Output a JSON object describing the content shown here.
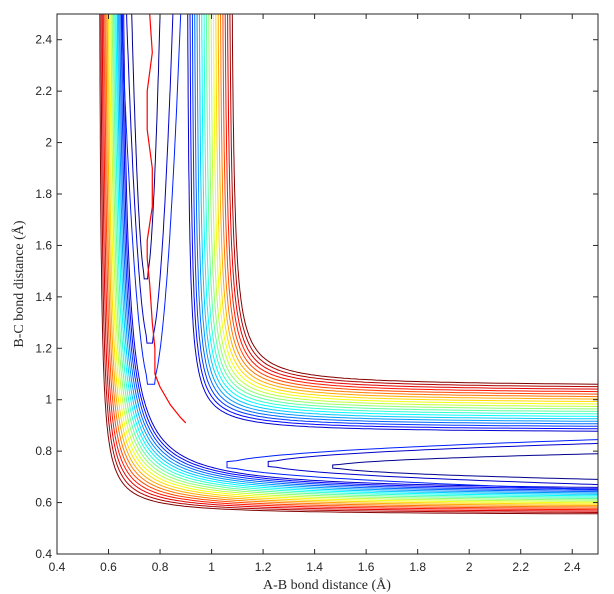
{
  "chart_data": {
    "type": "contour",
    "title": "",
    "xlabel": "A-B bond distance (Å)",
    "ylabel": "B-C bond distance (Å)",
    "xlim": [
      0.4,
      2.5
    ],
    "ylim": [
      0.4,
      2.5
    ],
    "xticks": [
      "0.4",
      "0.6",
      "0.8",
      "1",
      "1.2",
      "1.4",
      "1.6",
      "1.8",
      "2",
      "2.2",
      "2.4"
    ],
    "yticks": [
      "0.4",
      "0.6",
      "0.8",
      "1",
      "1.2",
      "1.4",
      "1.6",
      "1.8",
      "2",
      "2.2",
      "2.4"
    ],
    "grid": false,
    "colormap": "jet",
    "n_levels": 20,
    "inner_wall": {
      "asym_x": [
        0.64,
        0.56
      ],
      "asym_y": [
        0.64,
        0.55
      ],
      "curvature": [
        0.035,
        0.012
      ]
    },
    "outer_wall": {
      "asym_x": [
        0.9,
        1.07
      ],
      "asym_y": [
        0.87,
        1.05
      ],
      "curvature": [
        0.012,
        0.015
      ]
    },
    "entrance_valley_tongues": [
      {
        "x_left": 0.69,
        "x_right": 0.8,
        "tip_y": 1.47
      },
      {
        "x_left": 0.67,
        "x_right": 0.85,
        "tip_y": 1.22
      },
      {
        "x_left": 0.65,
        "x_right": 0.88,
        "tip_y": 1.06
      }
    ],
    "exit_valley_tongues": [
      {
        "y_low": 0.69,
        "y_high": 0.79,
        "tip_x": 1.47
      },
      {
        "y_low": 0.67,
        "y_high": 0.83,
        "tip_x": 1.22
      },
      {
        "y_low": 0.65,
        "y_high": 0.845,
        "tip_x": 1.06
      }
    ],
    "trajectory": {
      "color": "#ff0000",
      "x": [
        0.76,
        0.77,
        0.75,
        0.75,
        0.77,
        0.77,
        0.75,
        0.75,
        0.76,
        0.77,
        0.78,
        0.78,
        0.8,
        0.84,
        0.88,
        0.9,
        0.89
      ],
      "y": [
        2.5,
        2.35,
        2.2,
        2.05,
        1.9,
        1.75,
        1.62,
        1.55,
        1.45,
        1.3,
        1.2,
        1.1,
        1.05,
        0.98,
        0.93,
        0.91,
        0.92
      ]
    }
  }
}
